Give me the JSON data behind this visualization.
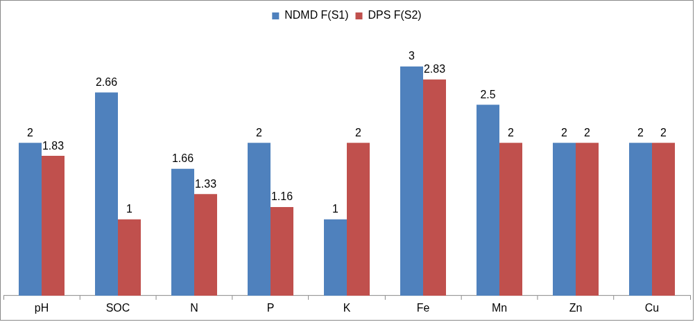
{
  "chart_data": {
    "type": "bar",
    "categories": [
      "pH",
      "SOC",
      "N",
      "P",
      "K",
      "Fe",
      "Mn",
      "Zn",
      "Cu"
    ],
    "series": [
      {
        "name": "NDMD F(S1)",
        "color": "#4f81bd",
        "values": [
          2,
          2.66,
          1.66,
          2,
          1,
          3,
          2.5,
          2,
          2
        ]
      },
      {
        "name": "DPS F(S2)",
        "color": "#c0504d",
        "values": [
          1.83,
          1,
          1.33,
          1.16,
          2,
          2.83,
          2,
          2,
          2
        ]
      }
    ],
    "data_labels": true,
    "legend": "top",
    "grid": false
  }
}
